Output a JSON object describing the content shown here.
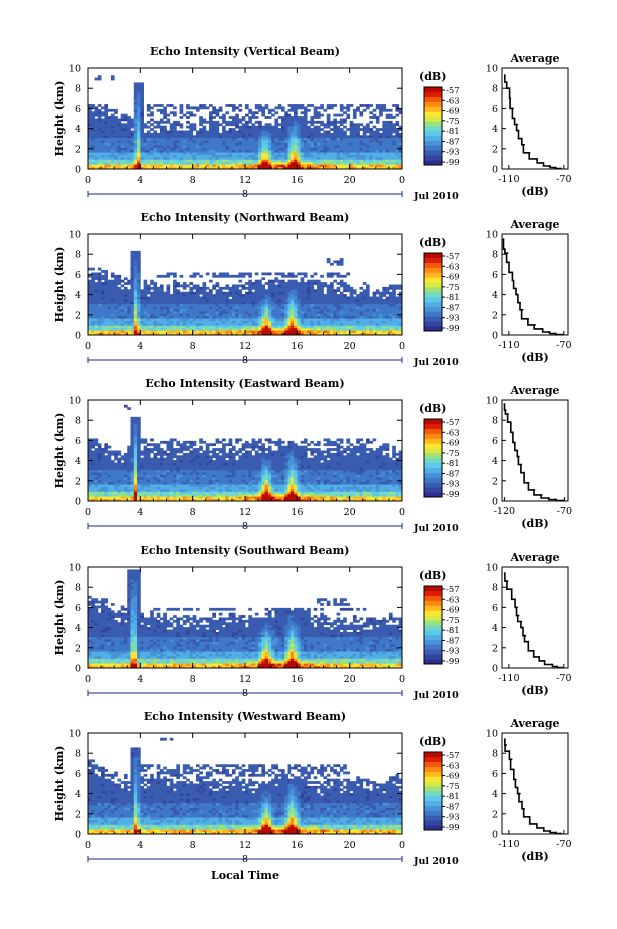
{
  "colors": {
    "colormap": [
      "#2a2f8e",
      "#33459c",
      "#3a5cb0",
      "#3f78c8",
      "#4792d8",
      "#52aee6",
      "#5cc8ea",
      "#72d8c8",
      "#9ee07a",
      "#d8ea46",
      "#ffe630",
      "#ffb820",
      "#ff8a10",
      "#f25a08",
      "#dc1e04",
      "#b80a00"
    ],
    "line": "#000000"
  },
  "chart_data": [
    {
      "type": "heatmap",
      "panel": 0,
      "title": "Echo Intensity (Vertical Beam)",
      "ylabel": "Height (km)",
      "ylim": [
        0,
        10
      ],
      "yticks": [
        "0",
        "2",
        "4",
        "6",
        "8",
        "10"
      ],
      "xlim": [
        0,
        24
      ],
      "xticks": [
        "0",
        "4",
        "8",
        "12",
        "16",
        "20",
        "0"
      ],
      "day_marker": "8",
      "date_label": "Jul 2010",
      "colorbar_title": "(dB)",
      "colorbar_levels": [
        "-57",
        "-63",
        "-69",
        "-75",
        "-81",
        "-87",
        "-93",
        "-99"
      ],
      "top_height_profile": {
        "x": [
          0,
          1,
          2,
          3,
          4,
          5,
          6,
          8,
          10,
          12,
          14,
          16,
          18,
          20,
          22,
          24
        ],
        "y": [
          6.5,
          6.2,
          5.8,
          5.2,
          5.0,
          4.9,
          4.8,
          4.7,
          4.8,
          4.9,
          4.8,
          4.9,
          4.8,
          4.7,
          4.6,
          4.6
        ]
      },
      "cells": [
        {
          "x0": 4.5,
          "x1": 24,
          "y0": 5,
          "y1": 6.5
        },
        {
          "x0": 0.5,
          "x1": 2,
          "y0": 8.7,
          "y1": 9.2
        }
      ],
      "features": [
        {
          "x": 13.5,
          "width": 1.2,
          "top": 4.0
        },
        {
          "x": 15.8,
          "width": 1.3,
          "top": 5.0
        },
        {
          "x": 3.8,
          "width": 0.5,
          "top": 8.2
        }
      ]
    },
    {
      "type": "heatmap",
      "panel": 1,
      "title": "Echo Intensity (Northward Beam)",
      "ylabel": "Height (km)",
      "ylim": [
        0,
        10
      ],
      "yticks": [
        "0",
        "2",
        "4",
        "6",
        "8",
        "10"
      ],
      "xlim": [
        0,
        24
      ],
      "xticks": [
        "0",
        "4",
        "8",
        "12",
        "16",
        "20",
        "0"
      ],
      "day_marker": "8",
      "date_label": "Jul 2010",
      "colorbar_title": "(dB)",
      "colorbar_levels": [
        "-57",
        "-63",
        "-69",
        "-75",
        "-81",
        "-87",
        "-93",
        "-99"
      ],
      "top_height_profile": {
        "x": [
          0,
          1,
          2,
          3,
          4,
          5,
          6,
          8,
          10,
          12,
          14,
          16,
          18,
          20,
          22,
          24
        ],
        "y": [
          6.5,
          6.3,
          5.9,
          5.4,
          5.2,
          5.1,
          5.0,
          5.0,
          5.2,
          5.3,
          5.5,
          5.6,
          5.3,
          5.0,
          4.8,
          4.8
        ]
      },
      "cells": [
        {
          "x0": 5,
          "x1": 20,
          "y0": 5.6,
          "y1": 6.2
        },
        {
          "x0": 18,
          "x1": 19.5,
          "y0": 7,
          "y1": 7.5
        }
      ],
      "features": [
        {
          "x": 13.6,
          "width": 1.2,
          "top": 4.2
        },
        {
          "x": 15.6,
          "width": 1.3,
          "top": 5.0
        },
        {
          "x": 3.7,
          "width": 0.5,
          "top": 8.0
        }
      ]
    },
    {
      "type": "heatmap",
      "panel": 2,
      "title": "Echo Intensity (Eastward Beam)",
      "ylabel": "Height (km)",
      "ylim": [
        0,
        10
      ],
      "yticks": [
        "0",
        "2",
        "4",
        "6",
        "8",
        "10"
      ],
      "xlim": [
        0,
        24
      ],
      "xticks": [
        "0",
        "4",
        "8",
        "12",
        "16",
        "20",
        "0"
      ],
      "day_marker": "8",
      "date_label": "Jul 2010",
      "colorbar_title": "(dB)",
      "colorbar_levels": [
        "-57",
        "-63",
        "-69",
        "-75",
        "-81",
        "-87",
        "-93",
        "-99"
      ],
      "top_height_profile": {
        "x": [
          0,
          1,
          2,
          3,
          4,
          5,
          6,
          8,
          10,
          12,
          14,
          16,
          18,
          20,
          22,
          24
        ],
        "y": [
          6.0,
          5.8,
          5.4,
          5.0,
          5.4,
          5.6,
          5.5,
          5.4,
          5.6,
          5.6,
          5.5,
          5.5,
          5.4,
          5.4,
          5.5,
          5.6
        ]
      },
      "cells": [
        {
          "x0": 4,
          "x1": 22,
          "y0": 5.5,
          "y1": 6.3
        },
        {
          "x0": 2.5,
          "x1": 3.2,
          "y0": 9,
          "y1": 9.6
        }
      ],
      "features": [
        {
          "x": 13.6,
          "width": 1.2,
          "top": 4.5
        },
        {
          "x": 15.6,
          "width": 1.3,
          "top": 5.2
        },
        {
          "x": 3.6,
          "width": 0.5,
          "top": 8.0
        }
      ]
    },
    {
      "type": "heatmap",
      "panel": 3,
      "title": "Echo Intensity (Southward Beam)",
      "ylabel": "Height (km)",
      "ylim": [
        0,
        10
      ],
      "yticks": [
        "0",
        "2",
        "4",
        "6",
        "8",
        "10"
      ],
      "xlim": [
        0,
        24
      ],
      "xticks": [
        "0",
        "4",
        "8",
        "12",
        "16",
        "20",
        "0"
      ],
      "day_marker": "8",
      "date_label": "Jul 2010",
      "colorbar_title": "(dB)",
      "colorbar_levels": [
        "-57",
        "-63",
        "-69",
        "-75",
        "-81",
        "-87",
        "-93",
        "-99"
      ],
      "top_height_profile": {
        "x": [
          0,
          1,
          2,
          3,
          4,
          5,
          6,
          8,
          10,
          12,
          14,
          16,
          18,
          20,
          22,
          24
        ],
        "y": [
          7.0,
          6.8,
          6.2,
          5.6,
          5.4,
          5.3,
          5.2,
          5.1,
          5.2,
          5.3,
          5.4,
          5.5,
          5.2,
          5.0,
          5.0,
          5.2
        ]
      },
      "cells": [
        {
          "x0": 5,
          "x1": 22,
          "y0": 5.6,
          "y1": 6.0
        },
        {
          "x0": 17.5,
          "x1": 20,
          "y0": 6.2,
          "y1": 6.8
        }
      ],
      "features": [
        {
          "x": 13.6,
          "width": 1.3,
          "top": 4.6
        },
        {
          "x": 15.6,
          "width": 1.4,
          "top": 5.4
        },
        {
          "x": 3.5,
          "width": 0.6,
          "top": 9.5
        }
      ]
    },
    {
      "type": "heatmap",
      "panel": 4,
      "title": "Echo Intensity (Westward Beam)",
      "ylabel": "Height (km)",
      "ylim": [
        0,
        10
      ],
      "yticks": [
        "0",
        "2",
        "4",
        "6",
        "8",
        "10"
      ],
      "xlim": [
        0,
        24
      ],
      "xticks": [
        "0",
        "4",
        "8",
        "12",
        "16",
        "20",
        "0"
      ],
      "day_marker": "8",
      "date_label": "Jul 2010",
      "xlabel": "Local Time",
      "colorbar_title": "(dB)",
      "colorbar_levels": [
        "-57",
        "-63",
        "-69",
        "-75",
        "-81",
        "-87",
        "-93",
        "-99"
      ],
      "top_height_profile": {
        "x": [
          0,
          1,
          2,
          3,
          4,
          5,
          6,
          8,
          10,
          12,
          14,
          16,
          18,
          20,
          22,
          24
        ],
        "y": [
          7.2,
          6.8,
          6.2,
          5.5,
          5.6,
          5.7,
          5.8,
          5.6,
          5.5,
          5.5,
          5.4,
          5.6,
          5.4,
          5.4,
          5.3,
          5.6
        ]
      },
      "cells": [
        {
          "x0": 4,
          "x1": 20,
          "y0": 5.8,
          "y1": 6.8
        },
        {
          "x0": 5.5,
          "x1": 6.5,
          "y0": 9.2,
          "y1": 9.6
        }
      ],
      "features": [
        {
          "x": 13.6,
          "width": 1.2,
          "top": 4.3
        },
        {
          "x": 15.6,
          "width": 1.4,
          "top": 5.2
        },
        {
          "x": 3.7,
          "width": 0.5,
          "top": 8.3
        }
      ]
    },
    {
      "type": "line",
      "panel": 0,
      "title": "Average",
      "xlabel": "(dB)",
      "xlim": [
        -115,
        -67
      ],
      "xticks": [
        "-110",
        "-70"
      ],
      "ylim": [
        0,
        10
      ],
      "yticks": [
        "0",
        "2",
        "4",
        "6",
        "8",
        "10"
      ],
      "x": [
        -113,
        -112,
        -110,
        -109,
        -107,
        -106,
        -104,
        -103,
        -101,
        -99,
        -95,
        -90,
        -85,
        -80,
        -76,
        -72
      ],
      "y": [
        9.3,
        8.6,
        8.0,
        7.0,
        6.0,
        5.0,
        4.4,
        3.8,
        3.0,
        2.4,
        1.6,
        1.0,
        0.6,
        0.3,
        0.15,
        0.05
      ]
    },
    {
      "type": "line",
      "panel": 1,
      "title": "Average",
      "xlabel": "(dB)",
      "xlim": [
        -115,
        -67
      ],
      "xticks": [
        "-110",
        "-70"
      ],
      "ylim": [
        0,
        10
      ],
      "yticks": [
        "0",
        "2",
        "4",
        "6",
        "8",
        "10"
      ],
      "x": [
        -114,
        -113,
        -111,
        -110,
        -108,
        -107,
        -105,
        -104,
        -102,
        -100,
        -96,
        -91,
        -86,
        -81,
        -76,
        -71
      ],
      "y": [
        9.5,
        8.5,
        8.1,
        7.2,
        6.2,
        5.4,
        4.6,
        4.0,
        3.2,
        2.5,
        1.6,
        1.0,
        0.6,
        0.3,
        0.15,
        0.05
      ]
    },
    {
      "type": "line",
      "panel": 2,
      "title": "Average",
      "xlabel": "(dB)",
      "xlim": [
        -122,
        -67
      ],
      "xticks": [
        "-120",
        "-70"
      ],
      "ylim": [
        0,
        10
      ],
      "yticks": [
        "0",
        "2",
        "4",
        "6",
        "8",
        "10"
      ],
      "x": [
        -120,
        -119,
        -117,
        -115,
        -113,
        -112,
        -110,
        -108,
        -106,
        -104,
        -100,
        -95,
        -89,
        -83,
        -77,
        -71
      ],
      "y": [
        9.6,
        9.0,
        8.6,
        7.8,
        6.8,
        5.8,
        5.0,
        4.4,
        3.6,
        2.8,
        1.8,
        1.1,
        0.6,
        0.3,
        0.15,
        0.05
      ]
    },
    {
      "type": "line",
      "panel": 3,
      "title": "Average",
      "xlabel": "(dB)",
      "xlim": [
        -115,
        -67
      ],
      "xticks": [
        "-110",
        "-70"
      ],
      "ylim": [
        0,
        10
      ],
      "yticks": [
        "0",
        "2",
        "4",
        "6",
        "8",
        "10"
      ],
      "x": [
        -113,
        -111,
        -108,
        -106,
        -104,
        -103,
        -101,
        -100,
        -98,
        -96,
        -92,
        -88,
        -84,
        -79,
        -75,
        -71
      ],
      "y": [
        9.4,
        8.6,
        7.8,
        6.8,
        6.0,
        5.2,
        4.6,
        4.0,
        3.2,
        2.6,
        1.7,
        1.1,
        0.7,
        0.35,
        0.15,
        0.05
      ]
    },
    {
      "type": "line",
      "panel": 4,
      "title": "Average",
      "xlabel": "(dB)",
      "xlim": [
        -115,
        -67
      ],
      "xticks": [
        "-110",
        "-70"
      ],
      "ylim": [
        0,
        10
      ],
      "yticks": [
        "0",
        "2",
        "4",
        "6",
        "8",
        "10"
      ],
      "x": [
        -113,
        -112,
        -110,
        -108,
        -107,
        -105,
        -104,
        -102,
        -101,
        -99,
        -95,
        -90,
        -85,
        -80,
        -76,
        -72
      ],
      "y": [
        9.4,
        8.8,
        8.2,
        7.4,
        6.4,
        5.4,
        4.6,
        4.0,
        3.2,
        2.5,
        1.7,
        1.0,
        0.6,
        0.3,
        0.15,
        0.05
      ]
    }
  ]
}
